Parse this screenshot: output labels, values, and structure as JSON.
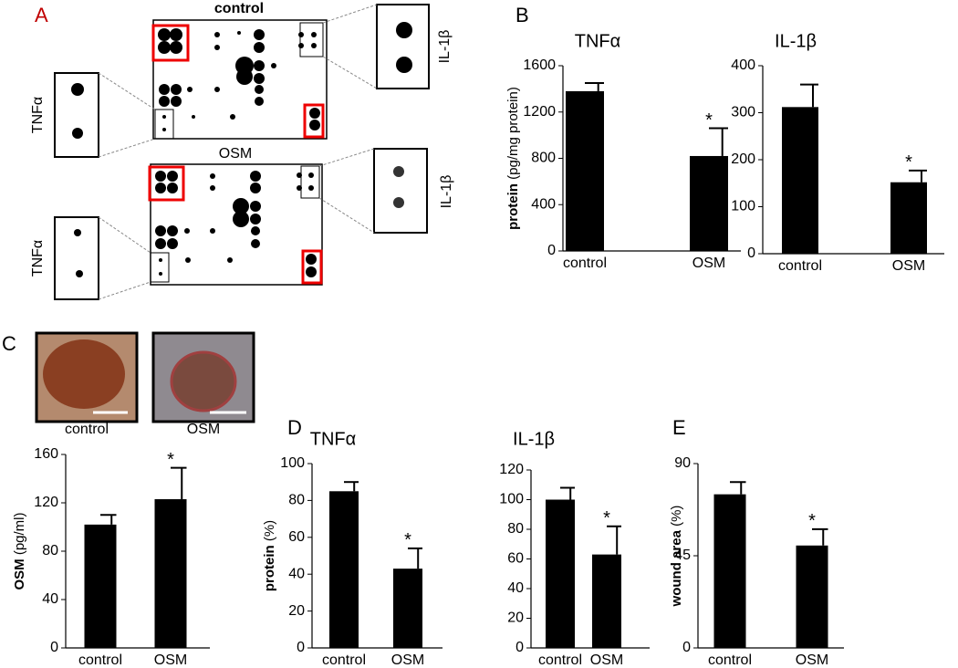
{
  "panel_labels": [
    "A",
    "B",
    "C",
    "D",
    "E"
  ],
  "blots": [
    {
      "title": "control",
      "left_label": "TNFα",
      "right_label": "IL-1β"
    },
    {
      "title": "OSM",
      "left_label": "TNFα",
      "right_label": "IL-1β"
    }
  ],
  "photos": [
    "control",
    "OSM"
  ],
  "chart_data": [
    {
      "type": "bar",
      "title": "TNFα",
      "y_label": "protein",
      "y_unit": "(pg/mg protein)",
      "categories": [
        "control",
        "OSM"
      ],
      "values": [
        1380,
        820
      ],
      "errors": [
        70,
        240
      ],
      "significance": [
        null,
        "*"
      ],
      "color": "#000000",
      "ylim": [
        0,
        1600
      ],
      "yticks": [
        0,
        400,
        800,
        1200,
        1600
      ]
    },
    {
      "type": "bar",
      "title": "IL-1β",
      "categories": [
        "control",
        "OSM"
      ],
      "values": [
        312,
        152
      ],
      "errors": [
        48,
        25
      ],
      "significance": [
        null,
        "*"
      ],
      "color": "#000000",
      "ylim": [
        0,
        400
      ],
      "yticks": [
        0,
        100,
        200,
        300,
        400
      ]
    },
    {
      "type": "bar",
      "y_label": "OSM",
      "y_unit": "(pg/ml)",
      "categories": [
        "control",
        "OSM"
      ],
      "values": [
        102,
        123
      ],
      "errors": [
        8,
        26
      ],
      "significance": [
        null,
        "*"
      ],
      "color": "#000000",
      "ylim": [
        0,
        160
      ],
      "yticks": [
        0,
        40,
        80,
        120,
        160
      ]
    },
    {
      "type": "bar",
      "title": "TNFα",
      "y_label": "protein",
      "y_unit": "(%)",
      "categories": [
        "control",
        "OSM"
      ],
      "values": [
        85,
        43
      ],
      "errors": [
        5,
        11
      ],
      "significance": [
        null,
        "*"
      ],
      "color": "#000000",
      "ylim": [
        0,
        100
      ],
      "yticks": [
        0,
        20,
        40,
        60,
        80,
        100
      ]
    },
    {
      "type": "bar",
      "title": "IL-1β",
      "categories": [
        "control",
        "OSM"
      ],
      "values": [
        100,
        63
      ],
      "errors": [
        8,
        19
      ],
      "significance": [
        null,
        "*"
      ],
      "color": "#000000",
      "ylim": [
        0,
        120
      ],
      "yticks": [
        0,
        20,
        40,
        60,
        80,
        100,
        120
      ]
    },
    {
      "type": "bar",
      "y_label": "wound area",
      "y_unit": "(%)",
      "categories": [
        "control",
        "OSM"
      ],
      "values": [
        75,
        50
      ],
      "errors": [
        6,
        8
      ],
      "significance": [
        null,
        "*"
      ],
      "color": "#000000",
      "ylim": [
        0,
        90
      ],
      "yticks": [
        0,
        45,
        90
      ]
    }
  ]
}
